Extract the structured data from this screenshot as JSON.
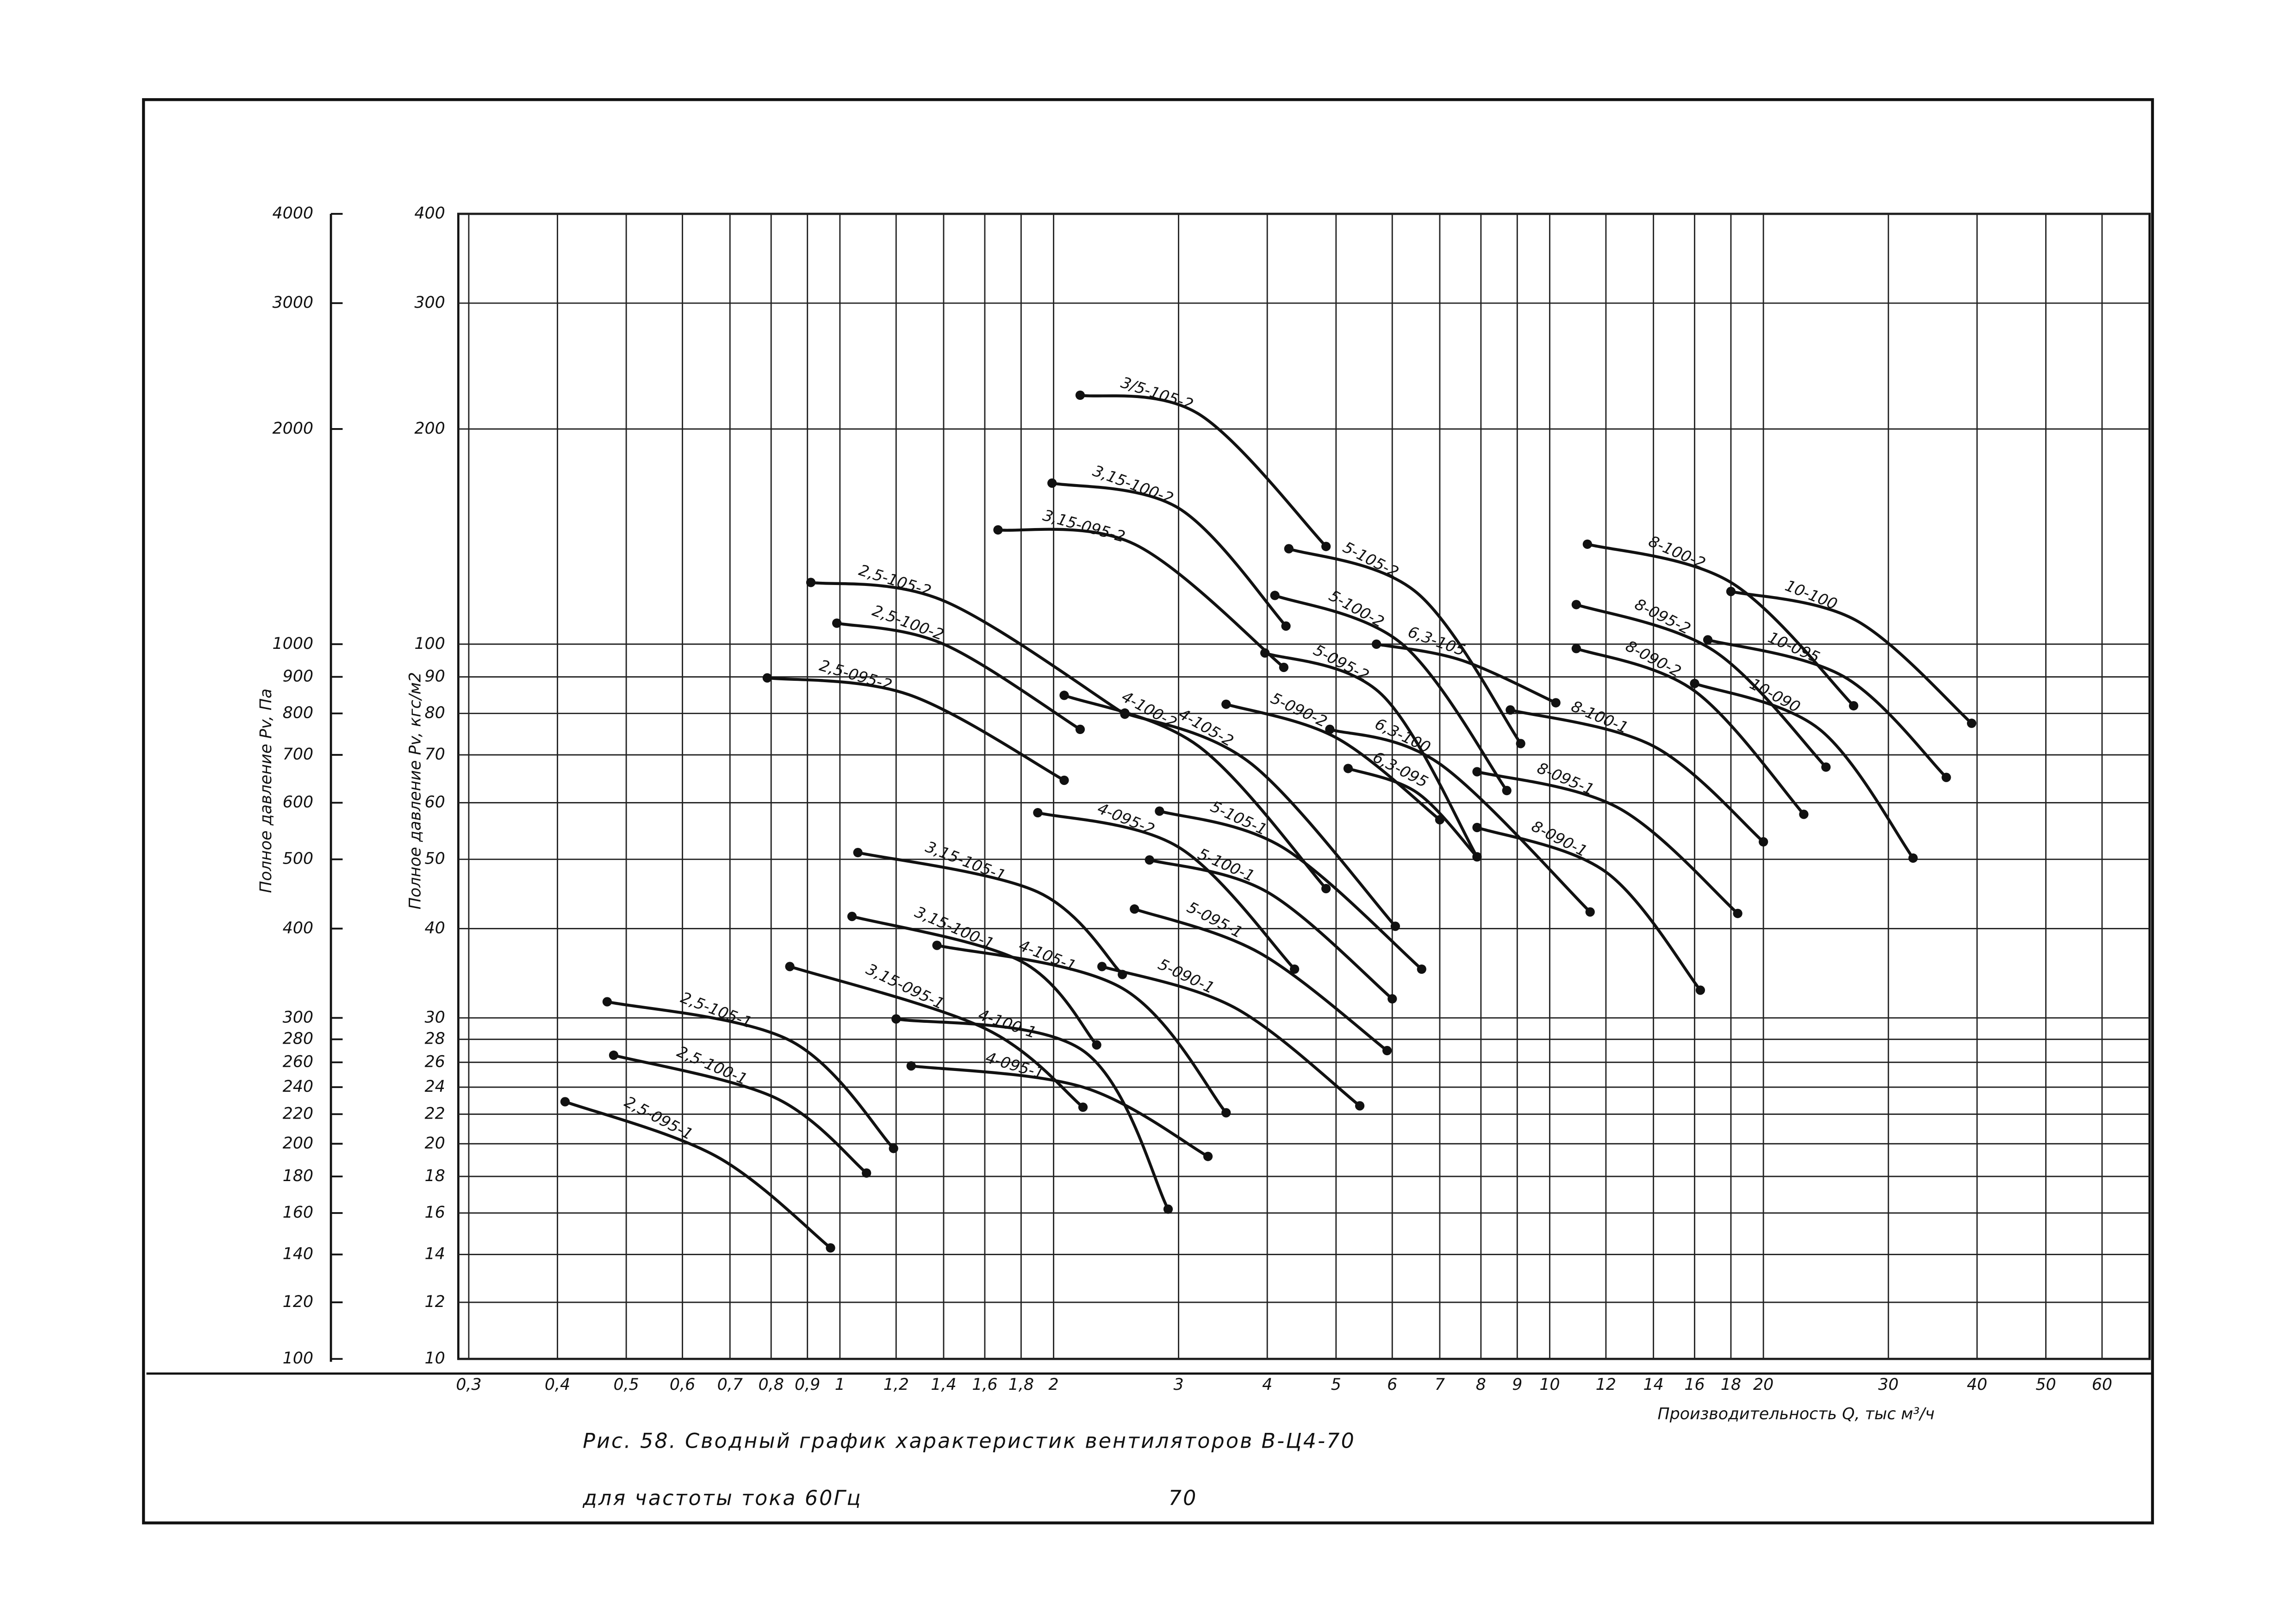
{
  "chart_data": {
    "type": "line",
    "title": "Рис. 58. Сводный график характеристик вентиляторов В-Ц4-70",
    "subtitle": "для частоты тока 60Гц",
    "page_number": 70,
    "xlabel": "Производительность Q, тыс м³/ч",
    "ylabel": "Полное давление Pv, кгс/м2",
    "y2label": "Полное давление Pv, Па",
    "log_x": true,
    "log_y": true,
    "grid": true,
    "color": "#111111",
    "xlim": [
      0.29,
      70
    ],
    "ylim": [
      10,
      400
    ],
    "y2lim": [
      100,
      4000
    ],
    "xticks": [
      {
        "value": 0.3,
        "label": "0,3"
      },
      {
        "value": 0.4,
        "label": "0,4"
      },
      {
        "value": 0.5,
        "label": "0,5"
      },
      {
        "value": 0.6,
        "label": "0,6"
      },
      {
        "value": 0.7,
        "label": "0,7"
      },
      {
        "value": 0.8,
        "label": "0,8"
      },
      {
        "value": 0.9,
        "label": "0,9"
      },
      1,
      {
        "value": 1.2,
        "label": "1,2"
      },
      {
        "value": 1.4,
        "label": "1,4"
      },
      {
        "value": 1.6,
        "label": "1,6"
      },
      {
        "value": 1.8,
        "label": "1,8"
      },
      2,
      3,
      4,
      5,
      6,
      7,
      8,
      9,
      10,
      12,
      14,
      16,
      18,
      20,
      30,
      40,
      50,
      60
    ],
    "yticks": [
      10,
      12,
      14,
      16,
      18,
      20,
      22,
      24,
      26,
      28,
      30,
      40,
      50,
      60,
      70,
      80,
      90,
      100,
      200,
      300,
      400
    ],
    "y2ticks": [
      100,
      120,
      140,
      160,
      180,
      200,
      220,
      240,
      260,
      280,
      300,
      400,
      500,
      600,
      700,
      800,
      900,
      1000,
      2000,
      3000,
      4000
    ],
    "series": [
      {
        "name": "2,5-095-1",
        "x": [
          0.41,
          0.67,
          0.97
        ],
        "values": [
          22.9,
          19.2,
          14.3
        ]
      },
      {
        "name": "2,5-100-1",
        "x": [
          0.48,
          0.81,
          1.09
        ],
        "values": [
          26.6,
          23.2,
          18.2
        ]
      },
      {
        "name": "2,5-105-1",
        "x": [
          0.47,
          0.85,
          1.19
        ],
        "values": [
          31.6,
          27.9,
          19.7
        ]
      },
      {
        "name": "3,15-095-1",
        "x": [
          0.85,
          1.6,
          2.2
        ],
        "values": [
          35.4,
          29,
          22.5
        ]
      },
      {
        "name": "3,15-100-1",
        "x": [
          1.04,
          1.8,
          2.3
        ],
        "values": [
          41.6,
          36,
          27.5
        ]
      },
      {
        "name": "3,15-105-1",
        "x": [
          1.06,
          1.9,
          2.5
        ],
        "values": [
          51.1,
          45,
          34.5
        ]
      },
      {
        "name": "4-095-1",
        "x": [
          1.26,
          2.2,
          3.3
        ],
        "values": [
          25.7,
          24,
          19.2
        ]
      },
      {
        "name": "4-100-1",
        "x": [
          1.2,
          2.2,
          2.9
        ],
        "values": [
          29.9,
          27,
          16.2
        ]
      },
      {
        "name": "4-105-1",
        "x": [
          1.37,
          2.5,
          3.5
        ],
        "values": [
          37.9,
          33,
          22.1
        ]
      },
      {
        "name": "5-090-1",
        "x": [
          2.34,
          3.6,
          5.4
        ],
        "values": [
          35.4,
          31,
          22.6
        ]
      },
      {
        "name": "5-095-1",
        "x": [
          2.6,
          3.9,
          5.9
        ],
        "values": [
          42.6,
          37,
          27
        ]
      },
      {
        "name": "5-100-1",
        "x": [
          2.73,
          4,
          6
        ],
        "values": [
          49.9,
          45,
          31.9
        ]
      },
      {
        "name": "5-105-1",
        "x": [
          2.82,
          4.2,
          6.6
        ],
        "values": [
          58.4,
          52,
          35.1
        ]
      },
      {
        "name": "2,5-095-2",
        "x": [
          0.79,
          1.25,
          2.07
        ],
        "values": [
          89.7,
          85,
          64.5
        ]
      },
      {
        "name": "2,5-100-2",
        "x": [
          0.99,
          1.4,
          2.18
        ],
        "values": [
          107,
          100,
          76
        ]
      },
      {
        "name": "2,5-105-2",
        "x": [
          0.91,
          1.4,
          2.52
        ],
        "values": [
          122,
          115,
          79.8
        ]
      },
      {
        "name": "3,15-095-2",
        "x": [
          1.67,
          2.6,
          4.22
        ],
        "values": [
          144.5,
          138,
          92.8
        ]
      },
      {
        "name": "3,15-100-2",
        "x": [
          1.99,
          3,
          4.25
        ],
        "values": [
          168,
          155,
          106
        ]
      },
      {
        "name": "3/5-105-2",
        "x": [
          2.18,
          3.2,
          4.84
        ],
        "values": [
          223,
          210,
          137
        ]
      },
      {
        "name": "4-095-2",
        "x": [
          1.9,
          3,
          4.37
        ],
        "values": [
          58.1,
          52,
          35.1
        ]
      },
      {
        "name": "4-100-2",
        "x": [
          2.07,
          3.2,
          4.84
        ],
        "values": [
          84.8,
          72,
          45.5
        ]
      },
      {
        "name": "4-105-2",
        "x": [
          2.52,
          3.8,
          6.06
        ],
        "values": [
          80.1,
          68,
          40.3
        ]
      },
      {
        "name": "5-090-2",
        "x": [
          3.5,
          5,
          7
        ],
        "values": [
          82.4,
          74,
          56.8
        ]
      },
      {
        "name": "5-095-2",
        "x": [
          3.97,
          5.8,
          7.9
        ],
        "values": [
          97.2,
          85,
          50.4
        ]
      },
      {
        "name": "5-100-2",
        "x": [
          4.1,
          6.2,
          8.7
        ],
        "values": [
          117,
          100,
          62.4
        ]
      },
      {
        "name": "5-105-2",
        "x": [
          4.29,
          6.5,
          9.1
        ],
        "values": [
          136,
          118,
          72.6
        ]
      },
      {
        "name": "6,3-095",
        "x": [
          5.2,
          6.5,
          7.9
        ],
        "values": [
          67,
          62,
          50.4
        ]
      },
      {
        "name": "6,3-100",
        "x": [
          4.9,
          7,
          11.4
        ],
        "values": [
          76,
          68,
          42.2
        ]
      },
      {
        "name": "6,3-105",
        "x": [
          5.7,
          7.5,
          10.2
        ],
        "values": [
          100,
          95,
          82.8
        ]
      },
      {
        "name": "8-090-1",
        "x": [
          7.9,
          12,
          16.3
        ],
        "values": [
          55.4,
          48,
          32.8
        ]
      },
      {
        "name": "8-095-1",
        "x": [
          7.9,
          12.5,
          18.4
        ],
        "values": [
          66.3,
          59,
          42
        ]
      },
      {
        "name": "8-100-1",
        "x": [
          8.8,
          14,
          20
        ],
        "values": [
          80.9,
          72,
          52.9
        ]
      },
      {
        "name": "8-090-2",
        "x": [
          10.9,
          16,
          22.8
        ],
        "values": [
          98.6,
          86,
          57.8
        ]
      },
      {
        "name": "8-095-2",
        "x": [
          10.9,
          17,
          24.5
        ],
        "values": [
          113.6,
          98,
          67.3
        ]
      },
      {
        "name": "8-100-2",
        "x": [
          11.3,
          18,
          26.8
        ],
        "values": [
          138,
          122,
          82
        ]
      },
      {
        "name": "10-090",
        "x": [
          16,
          24,
          32.5
        ],
        "values": [
          88.1,
          76,
          50.2
        ]
      },
      {
        "name": "10-095",
        "x": [
          16.7,
          26,
          36.2
        ],
        "values": [
          101.4,
          90,
          65.1
        ]
      },
      {
        "name": "10-100",
        "x": [
          18,
          27,
          39.3
        ],
        "values": [
          118.5,
          108,
          77.5
        ]
      }
    ]
  }
}
